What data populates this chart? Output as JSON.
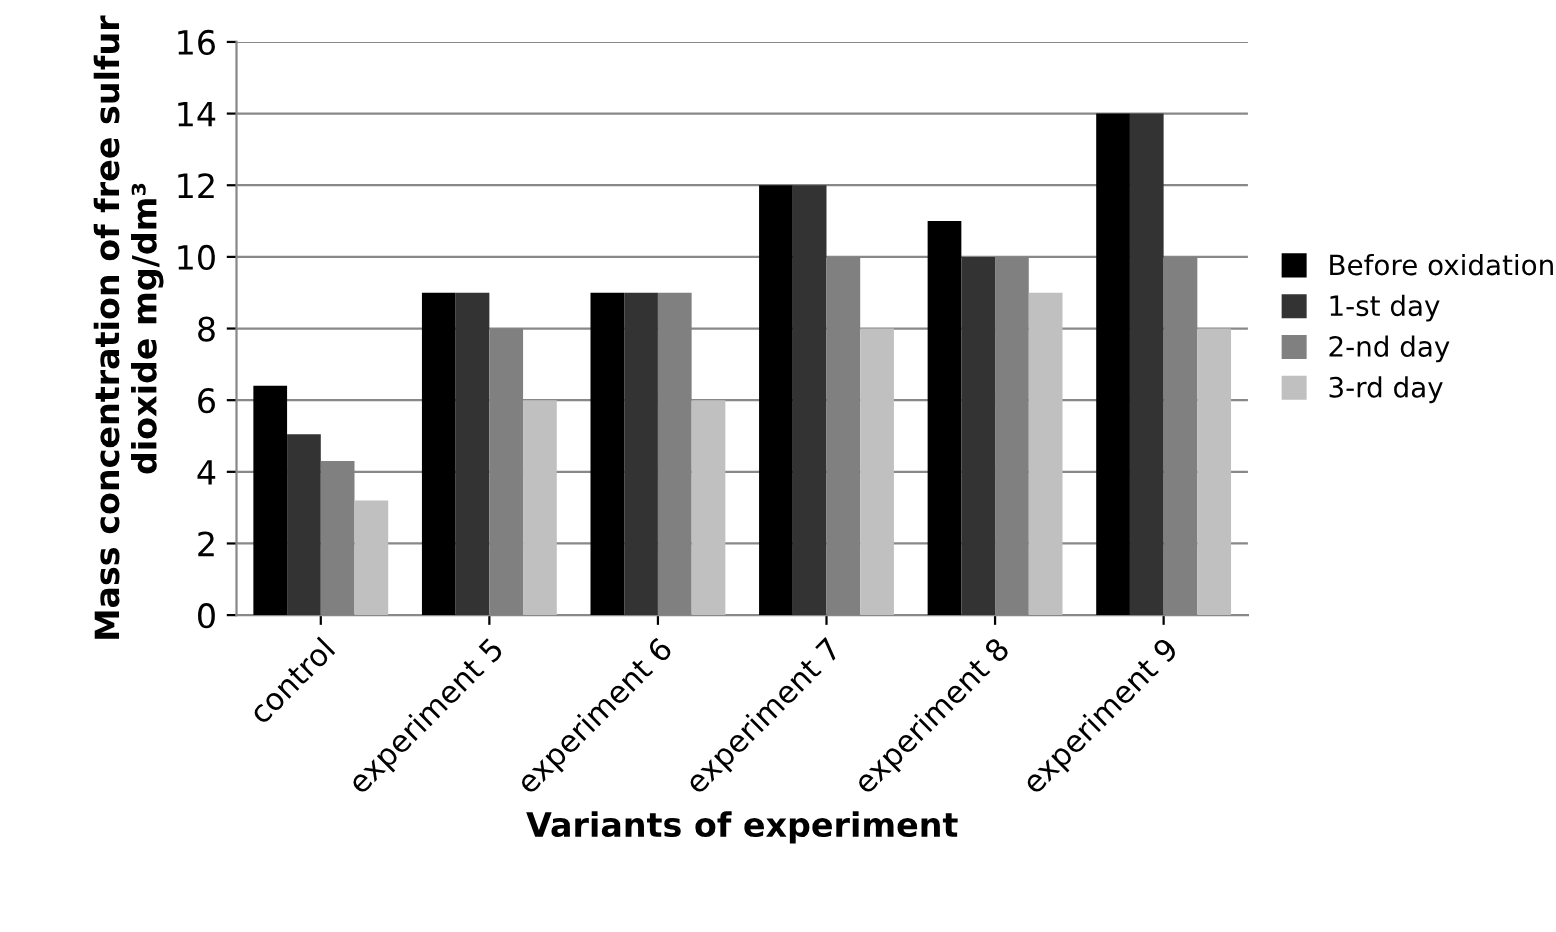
{
  "chart_data": {
    "type": "bar",
    "xlabel": "Variants of experiment",
    "ylabel": "Mass concentration of free sulfur dioxide mg/dm³",
    "categories": [
      "control",
      "experiment 5",
      "experiment 6",
      "experiment 7",
      "experiment 8",
      "experiment 9"
    ],
    "series": [
      {
        "name": "Before oxidation",
        "color": "#000000",
        "values": [
          6.4,
          9,
          9,
          12,
          11,
          14
        ]
      },
      {
        "name": "1-st day",
        "color": "#333333",
        "values": [
          5.05,
          9,
          9,
          12,
          10,
          14
        ]
      },
      {
        "name": "2-nd day",
        "color": "#808080",
        "values": [
          4.3,
          8,
          9,
          10,
          10,
          10
        ]
      },
      {
        "name": "3-rd day",
        "color": "#c0c0c0",
        "values": [
          3.2,
          6,
          6,
          8,
          9,
          8
        ]
      }
    ],
    "ylim": [
      0,
      16
    ],
    "yticks": [
      0,
      2,
      4,
      6,
      8,
      10,
      12,
      14,
      16
    ],
    "grid": "y",
    "legend": "right"
  }
}
